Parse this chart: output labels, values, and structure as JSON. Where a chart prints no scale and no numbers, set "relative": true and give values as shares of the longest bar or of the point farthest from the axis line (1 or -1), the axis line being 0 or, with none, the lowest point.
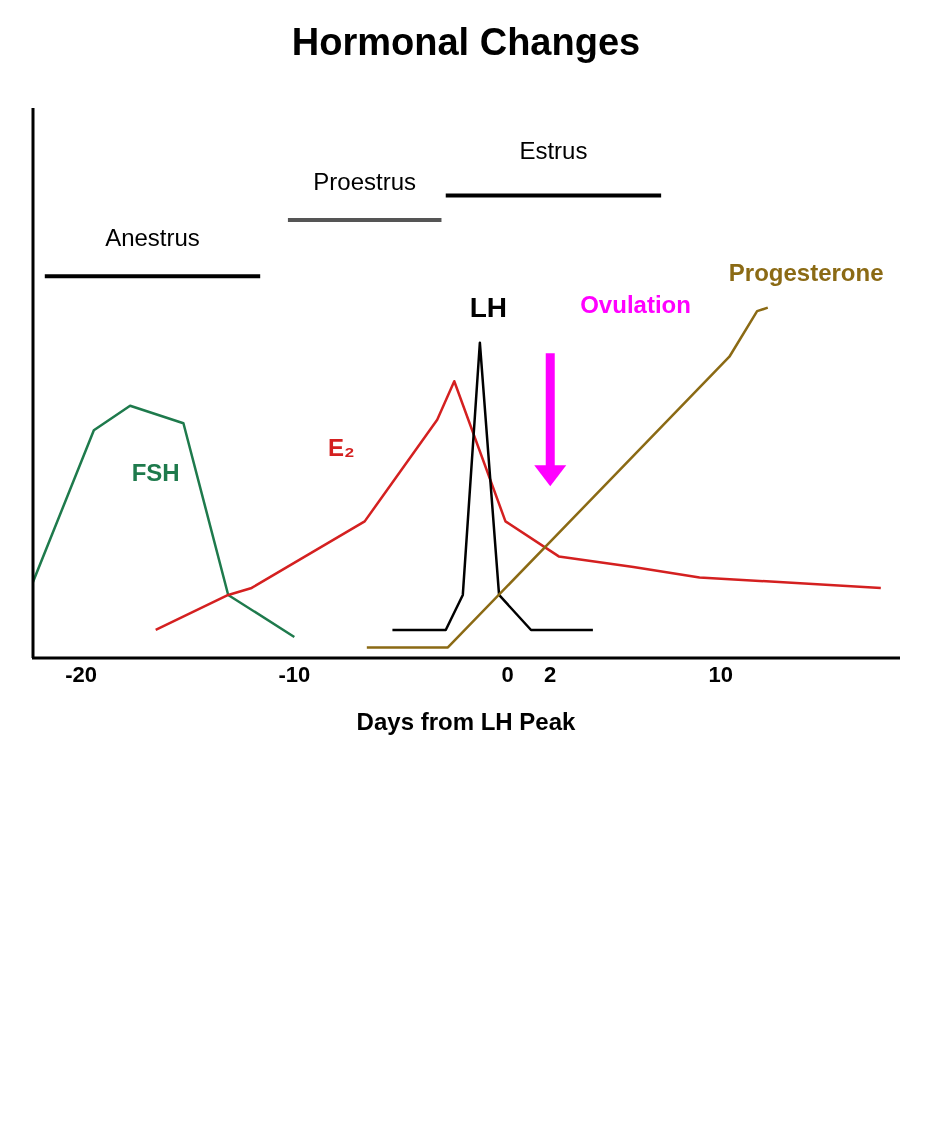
{
  "chart_data": {
    "type": "line",
    "title": "Hormonal Changes",
    "xlabel": "Days from LH Peak",
    "relative": true,
    "xlim": [
      -22.3,
      18.4
    ],
    "xticks": [
      -20,
      -10,
      0,
      2,
      10
    ],
    "legend": false,
    "grid": false,
    "marker": "none",
    "line_style": "solid",
    "series": [
      {
        "name": "FSH",
        "color": "#1e7a4c",
        "x": [
          -22.3,
          -19.4,
          -17.7,
          -15.2,
          -13.1,
          -10.0
        ],
        "values": [
          0.21,
          0.65,
          0.72,
          0.67,
          0.18,
          0.06
        ]
      },
      {
        "name": "E₂",
        "color": "#d42020",
        "x": [
          -16.5,
          -13.1,
          -12.0,
          -6.7,
          -3.3,
          -2.5,
          -0.1,
          2.4,
          5.9,
          9.0,
          17.5
        ],
        "values": [
          0.08,
          0.18,
          0.2,
          0.39,
          0.68,
          0.79,
          0.39,
          0.29,
          0.26,
          0.23,
          0.2
        ]
      },
      {
        "name": "LH",
        "color": "#000000",
        "x": [
          -5.4,
          -2.9,
          -2.1,
          -1.3,
          -0.4,
          1.1,
          4.0
        ],
        "values": [
          0.08,
          0.08,
          0.18,
          0.9,
          0.18,
          0.08,
          0.08
        ]
      },
      {
        "name": "Progesterone",
        "color": "#8b6a14",
        "x": [
          -6.6,
          -2.8,
          10.4,
          11.7,
          12.2
        ],
        "values": [
          0.03,
          0.03,
          0.86,
          0.99,
          1.0
        ]
      }
    ],
    "annotations": [
      "Ovulation",
      "Anestrus",
      "Proestrus",
      "Estrus"
    ]
  }
}
